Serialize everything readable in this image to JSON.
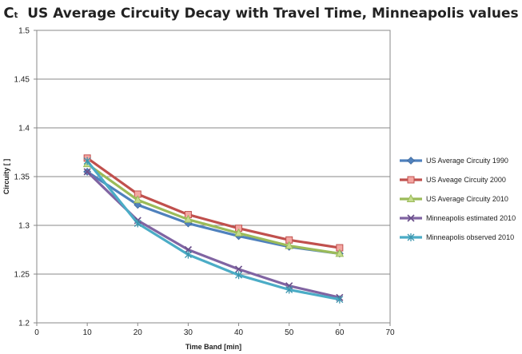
{
  "chart_data": {
    "type": "line",
    "title_prefix": "C",
    "title_prefix_sub": "t",
    "title": "US Average Circuity Decay with Travel Time, Minneapolis values",
    "xlabel": "Time Band [min]",
    "ylabel": "Circuity [ ]",
    "xlim": [
      0,
      70
    ],
    "ylim": [
      1.2,
      1.5
    ],
    "xticks": [
      0,
      10,
      20,
      30,
      40,
      50,
      60,
      70
    ],
    "yticks": [
      1.2,
      1.25,
      1.3,
      1.35,
      1.4,
      1.45,
      1.5
    ],
    "ytick_labels": [
      "1.2",
      "1.25",
      "1.3",
      "1.35",
      "1.4",
      "1.45",
      "1.5"
    ],
    "grid": "horizontal",
    "legend_position": "right",
    "x": [
      10,
      20,
      30,
      40,
      50,
      60
    ],
    "series": [
      {
        "name": "US Average Circuity 1990",
        "color": "#4f81bd",
        "marker": "diamond",
        "values": [
          1.355,
          1.321,
          1.302,
          1.289,
          1.278,
          1.271
        ]
      },
      {
        "name": "US Aveage Circuity 2000",
        "color": "#c0504d",
        "marker": "square",
        "values": [
          1.369,
          1.332,
          1.311,
          1.297,
          1.285,
          1.277
        ]
      },
      {
        "name": "US Average Circuity 2010",
        "color": "#9bbb59",
        "marker": "triangle",
        "values": [
          1.363,
          1.326,
          1.306,
          1.292,
          1.279,
          1.271
        ]
      },
      {
        "name": "Minneapolis estimated 2010",
        "color": "#8064a2",
        "marker": "x",
        "values": [
          1.355,
          1.305,
          1.275,
          1.255,
          1.238,
          1.226
        ]
      },
      {
        "name": "Minneapolis observed 2010",
        "color": "#4bacc6",
        "marker": "star",
        "values": [
          1.366,
          1.302,
          1.27,
          1.249,
          1.234,
          1.224
        ]
      }
    ]
  }
}
